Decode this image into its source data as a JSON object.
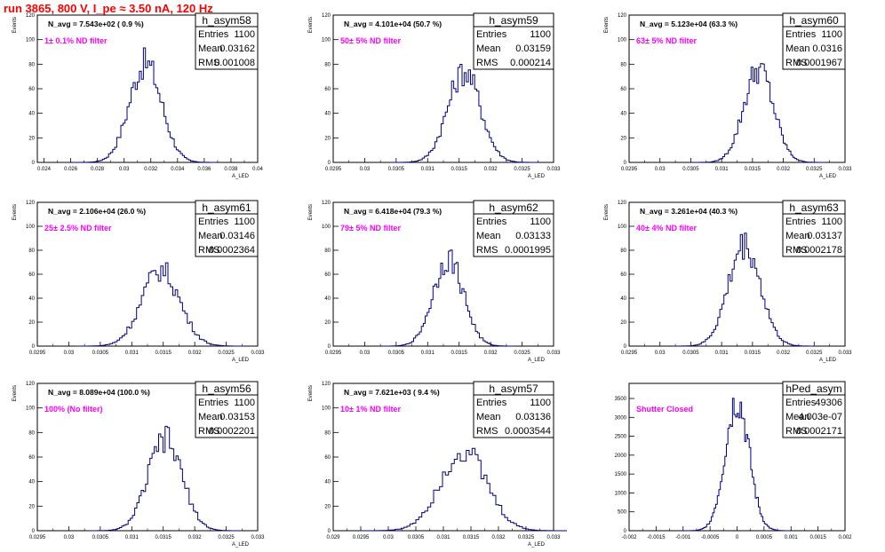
{
  "run_title": "run 3865,   800 V, I_pe ≈ 3.50 nA, 120 Hz",
  "colors": {
    "title": "#ff0000",
    "hist": "#000080",
    "filter_text": "#ff00ff",
    "axis": "#000000"
  },
  "stat_labels": {
    "entries": "Entries",
    "mean": "Mean",
    "rms": "RMS"
  },
  "chart_data": [
    {
      "type": "bar",
      "name": "h_asym58",
      "navg": "N_avg = 7.543e+02 ( 0.9 %)",
      "filter": "1± 0.1% ND filter",
      "entries": "1100",
      "mean": "0.03162",
      "rms": "0.001008",
      "ylabel": "Events",
      "xlabel": "A_LED",
      "xlim": [
        0.0235,
        0.04
      ],
      "ylim": [
        0,
        120
      ],
      "xticks": [
        0.024,
        0.026,
        0.028,
        0.03,
        0.032,
        0.034,
        0.036,
        0.038,
        0.04
      ],
      "xtick_labels": [
        "0.024",
        "0.026",
        "0.028",
        "0.03",
        "0.032",
        "0.034",
        "0.036",
        "0.038",
        "0.04"
      ],
      "yticks": [
        0,
        20,
        40,
        60,
        80,
        100,
        120
      ],
      "ytick_labels": [
        "0",
        "20",
        "40",
        "60",
        "80",
        "100",
        "120"
      ],
      "peak_x": 0.0316,
      "peak_y": 85,
      "width": 0.0012
    },
    {
      "type": "bar",
      "name": "h_asym59",
      "navg": "N_avg = 4.101e+04 (50.7 %)",
      "filter": "50± 5% ND filter",
      "entries": "1100",
      "mean": "0.03159",
      "rms": "0.000214",
      "ylabel": "Events",
      "xlabel": "A_LED",
      "xlim": [
        0.0295,
        0.033
      ],
      "ylim": [
        0,
        120
      ],
      "xticks": [
        0.0295,
        0.03,
        0.0305,
        0.031,
        0.0315,
        0.032,
        0.0325,
        0.033
      ],
      "xtick_labels": [
        "0.0295",
        "0.03",
        "0.0305",
        "0.031",
        "0.0315",
        "0.032",
        "0.0325",
        "0.033"
      ],
      "yticks": [
        0,
        20,
        40,
        60,
        80,
        100,
        120
      ],
      "ytick_labels": [
        "0",
        "20",
        "40",
        "60",
        "80",
        "100",
        "120"
      ],
      "peak_x": 0.03158,
      "peak_y": 78,
      "width": 0.00026
    },
    {
      "type": "bar",
      "name": "h_asym60",
      "navg": "N_avg = 5.123e+04 (63.3 %)",
      "filter": "63± 5% ND filter",
      "entries": "1100",
      "mean": "0.0316",
      "rms": "0.0001967",
      "ylabel": "Events",
      "xlabel": "A_LED",
      "xlim": [
        0.0295,
        0.033
      ],
      "ylim": [
        0,
        120
      ],
      "xticks": [
        0.0295,
        0.03,
        0.0305,
        0.031,
        0.0315,
        0.032,
        0.0325,
        0.033
      ],
      "xtick_labels": [
        "0.0295",
        "0.03",
        "0.0305",
        "0.031",
        "0.0315",
        "0.032",
        "0.0325",
        "0.033"
      ],
      "yticks": [
        0,
        20,
        40,
        60,
        80,
        100,
        120
      ],
      "ytick_labels": [
        "0",
        "20",
        "40",
        "60",
        "80",
        "100",
        "120"
      ],
      "peak_x": 0.0316,
      "peak_y": 80,
      "width": 0.00024
    },
    {
      "type": "bar",
      "name": "h_asym61",
      "navg": "N_avg = 2.106e+04 (26.0 %)",
      "filter": "25± 2.5% ND filter",
      "entries": "1100",
      "mean": "0.03146",
      "rms": "0.0002364",
      "ylabel": "Events",
      "xlabel": "A_LED",
      "xlim": [
        0.0295,
        0.033
      ],
      "ylim": [
        0,
        120
      ],
      "xticks": [
        0.0295,
        0.03,
        0.0305,
        0.031,
        0.0315,
        0.032,
        0.0325,
        0.033
      ],
      "xtick_labels": [
        "0.0295",
        "0.03",
        "0.0305",
        "0.031",
        "0.0315",
        "0.032",
        "0.0325",
        "0.033"
      ],
      "yticks": [
        0,
        20,
        40,
        60,
        80,
        100,
        120
      ],
      "ytick_labels": [
        "0",
        "20",
        "40",
        "60",
        "80",
        "100",
        "120"
      ],
      "peak_x": 0.03146,
      "peak_y": 67,
      "width": 0.0003
    },
    {
      "type": "bar",
      "name": "h_asym62",
      "navg": "N_avg = 6.418e+04 (79.3 %)",
      "filter": "79± 5% ND filter",
      "entries": "1100",
      "mean": "0.03133",
      "rms": "0.0001995",
      "ylabel": "Events",
      "xlabel": "A_LED",
      "xlim": [
        0.0295,
        0.033
      ],
      "ylim": [
        0,
        120
      ],
      "xticks": [
        0.0295,
        0.03,
        0.0305,
        0.031,
        0.0315,
        0.032,
        0.0325,
        0.033
      ],
      "xtick_labels": [
        "0.0295",
        "0.03",
        "0.0305",
        "0.031",
        "0.0315",
        "0.032",
        "0.0325",
        "0.033"
      ],
      "yticks": [
        0,
        20,
        40,
        60,
        80,
        100,
        120
      ],
      "ytick_labels": [
        "0",
        "20",
        "40",
        "60",
        "80",
        "100",
        "120"
      ],
      "peak_x": 0.03133,
      "peak_y": 77,
      "width": 0.00024
    },
    {
      "type": "bar",
      "name": "h_asym63",
      "navg": "N_avg = 3.261e+04 (40.3 %)",
      "filter": "40± 4% ND filter",
      "entries": "1100",
      "mean": "0.03137",
      "rms": "0.0002178",
      "ylabel": "Events",
      "xlabel": "A_LED",
      "xlim": [
        0.0295,
        0.033
      ],
      "ylim": [
        0,
        120
      ],
      "xticks": [
        0.0295,
        0.03,
        0.0305,
        0.031,
        0.0315,
        0.032,
        0.0325,
        0.033
      ],
      "xtick_labels": [
        "0.0295",
        "0.03",
        "0.0305",
        "0.031",
        "0.0315",
        "0.032",
        "0.0325",
        "0.033"
      ],
      "yticks": [
        0,
        20,
        40,
        60,
        80,
        100,
        120
      ],
      "ytick_labels": [
        "0",
        "20",
        "40",
        "60",
        "80",
        "100",
        "120"
      ],
      "peak_x": 0.03137,
      "peak_y": 89,
      "width": 0.00026
    },
    {
      "type": "bar",
      "name": "h_asym56",
      "navg": "N_avg = 8.089e+04 (100.0 %)",
      "filter": "100% (No filter)",
      "entries": "1100",
      "mean": "0.03153",
      "rms": "0.0002201",
      "ylabel": "Events",
      "xlabel": "A_LED",
      "xlim": [
        0.0295,
        0.033
      ],
      "ylim": [
        0,
        120
      ],
      "xticks": [
        0.0295,
        0.03,
        0.0305,
        0.031,
        0.0315,
        0.032,
        0.0325,
        0.033
      ],
      "xtick_labels": [
        "0.0295",
        "0.03",
        "0.0305",
        "0.031",
        "0.0315",
        "0.032",
        "0.0325",
        "0.033"
      ],
      "yticks": [
        0,
        20,
        40,
        60,
        80,
        100,
        120
      ],
      "ytick_labels": [
        "0",
        "20",
        "40",
        "60",
        "80",
        "100",
        "120"
      ],
      "peak_x": 0.03153,
      "peak_y": 78,
      "width": 0.00027
    },
    {
      "type": "bar",
      "name": "h_asym57",
      "navg": "N_avg = 7.621e+03 ( 9.4 %)",
      "filter": "10± 1% ND filter",
      "entries": "1100",
      "mean": "0.03136",
      "rms": "0.0003544",
      "ylabel": "Events",
      "xlabel": "A_LED",
      "xlim": [
        0.029,
        0.033
      ],
      "ylim": [
        0,
        120
      ],
      "xticks": [
        0.029,
        0.0295,
        0.03,
        0.0305,
        0.031,
        0.0315,
        0.032,
        0.0325,
        0.033
      ],
      "xtick_labels": [
        "0.029",
        "0.0295",
        "0.03",
        "0.0305",
        "0.031",
        "0.0315",
        "0.032",
        "0.0325",
        "0.033"
      ],
      "yticks": [
        0,
        20,
        40,
        60,
        80,
        100,
        120
      ],
      "ytick_labels": [
        "0",
        "20",
        "40",
        "60",
        "80",
        "100",
        "120"
      ],
      "peak_x": 0.03136,
      "peak_y": 69,
      "width": 0.00042
    },
    {
      "type": "bar",
      "name": "hPed_asym",
      "navg": "",
      "filter": "Shutter Closed",
      "entries": "49306",
      "mean": "4.003e-07",
      "rms": "0.0002171",
      "ylabel": "",
      "xlabel": "",
      "xlim": [
        -0.002,
        0.002
      ],
      "ylim": [
        0,
        3900
      ],
      "xticks": [
        -0.002,
        -0.0015,
        -0.001,
        -0.0005,
        0,
        0.0005,
        0.001,
        0.0015,
        0.002
      ],
      "xtick_labels": [
        "-0.002",
        "-0.0015",
        "-0.001",
        "-0.0005",
        "0",
        "0.0005",
        "0.001",
        "0.0015",
        "0.002"
      ],
      "yticks": [
        0,
        500,
        1000,
        1500,
        2000,
        2500,
        3000,
        3500
      ],
      "ytick_labels": [
        "0",
        "500",
        "1000",
        "1500",
        "2000",
        "2500",
        "3000",
        "3500"
      ],
      "peak_x": 0.0,
      "peak_y": 3650,
      "width": 0.00022
    }
  ]
}
